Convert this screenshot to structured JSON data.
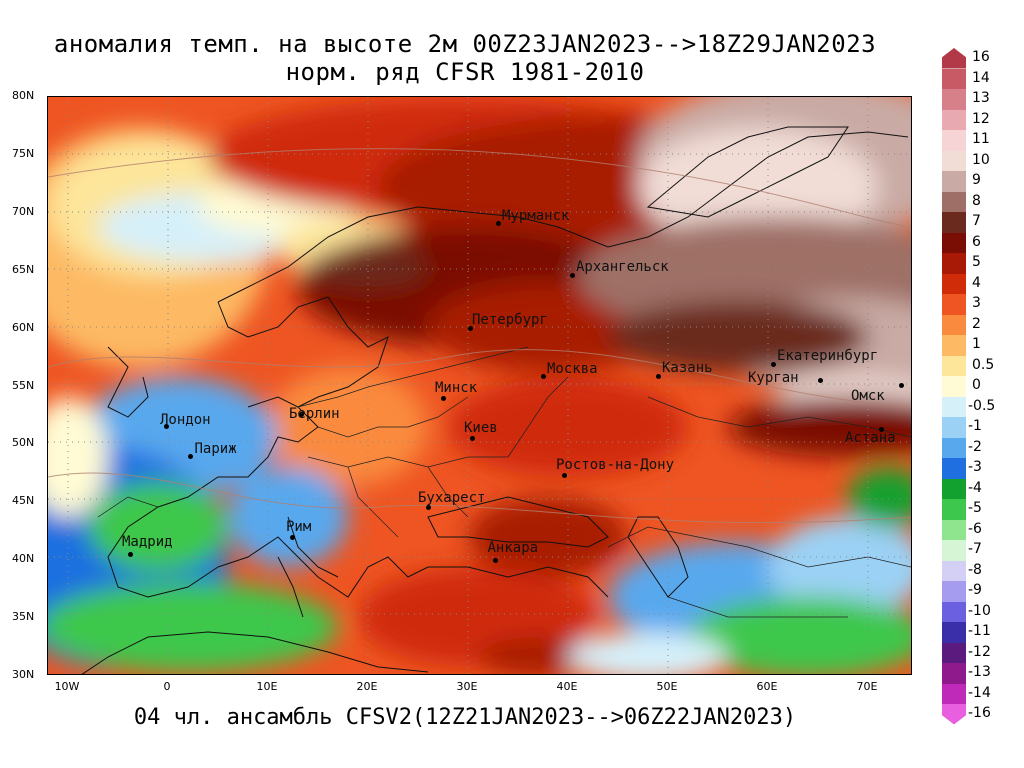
{
  "title_line1": "аномалия темп. на высоте 2м 00Z23JAN2023-->18Z29JAN2023",
  "title_line2": "норм. ряд CFSR 1981-2010",
  "footer": "04 чл. ансамбль CFSV2(12Z21JAN2023-->06Z22JAN2023)",
  "lat_labels": [
    "80N",
    "75N",
    "70N",
    "65N",
    "60N",
    "55N",
    "50N",
    "45N",
    "40N",
    "35N",
    "30N"
  ],
  "lon_labels": [
    "10W",
    "0",
    "10E",
    "20E",
    "30E",
    "40E",
    "50E",
    "60E",
    "70E"
  ],
  "cities": [
    {
      "name": "Мурманск",
      "lon": 33.1,
      "lat": 68.97
    },
    {
      "name": "Архангельск",
      "lon": 40.5,
      "lat": 64.54
    },
    {
      "name": "Петербург",
      "lon": 30.3,
      "lat": 59.94
    },
    {
      "name": "Москва",
      "lon": 37.6,
      "lat": 55.75
    },
    {
      "name": "Казань",
      "lon": 49.1,
      "lat": 55.79
    },
    {
      "name": "Екатеринбург",
      "lon": 60.6,
      "lat": 56.84
    },
    {
      "name": "Курган",
      "lon": 65.3,
      "lat": 55.44
    },
    {
      "name": "Омск",
      "lon": 73.4,
      "lat": 54.99
    },
    {
      "name": "Астана",
      "lon": 71.4,
      "lat": 51.17
    },
    {
      "name": "Минск",
      "lon": 27.6,
      "lat": 53.9
    },
    {
      "name": "Берлин",
      "lon": 13.4,
      "lat": 52.52
    },
    {
      "name": "Лондон",
      "lon": -0.1,
      "lat": 51.5
    },
    {
      "name": "Париж",
      "lon": 2.35,
      "lat": 48.86
    },
    {
      "name": "Киев",
      "lon": 30.5,
      "lat": 50.45
    },
    {
      "name": "Ростов-на-Дону",
      "lon": 39.7,
      "lat": 47.23
    },
    {
      "name": "Бухарест",
      "lon": 26.1,
      "lat": 44.43
    },
    {
      "name": "Рим",
      "lon": 12.5,
      "lat": 41.9
    },
    {
      "name": "Мадрид",
      "lon": -3.7,
      "lat": 40.42
    },
    {
      "name": "Анкара",
      "lon": 32.85,
      "lat": 39.93
    }
  ],
  "legend": [
    {
      "label": "16",
      "color": "#b23a48"
    },
    {
      "label": "14",
      "color": "#c85a65"
    },
    {
      "label": "13",
      "color": "#d8808a"
    },
    {
      "label": "12",
      "color": "#e8aab0"
    },
    {
      "label": "11",
      "color": "#f6d4d6"
    },
    {
      "label": "10",
      "color": "#f1dcd6"
    },
    {
      "label": "9",
      "color": "#c9aaa4"
    },
    {
      "label": "8",
      "color": "#9e6f66"
    },
    {
      "label": "7",
      "color": "#6a2a1e"
    },
    {
      "label": "6",
      "color": "#7a0d04"
    },
    {
      "label": "5",
      "color": "#a81a06"
    },
    {
      "label": "4",
      "color": "#d02c0a"
    },
    {
      "label": "3",
      "color": "#ee5522"
    },
    {
      "label": "2",
      "color": "#fa8a3e"
    },
    {
      "label": "1",
      "color": "#fdb964"
    },
    {
      "label": "0.5",
      "color": "#fde59a"
    },
    {
      "label": "0",
      "color": "#fffbd4"
    },
    {
      "label": "-0.5",
      "color": "#d6f0fa"
    },
    {
      "label": "-1",
      "color": "#9bd1f5"
    },
    {
      "label": "-2",
      "color": "#58a8ee"
    },
    {
      "label": "-3",
      "color": "#1f6fe0"
    },
    {
      "label": "-4",
      "color": "#12a02e"
    },
    {
      "label": "-5",
      "color": "#3dc74c"
    },
    {
      "label": "-6",
      "color": "#8ee58e"
    },
    {
      "label": "-7",
      "color": "#d6f5d4"
    },
    {
      "label": "-8",
      "color": "#d4d0f5"
    },
    {
      "label": "-9",
      "color": "#a59cf0"
    },
    {
      "label": "-10",
      "color": "#6b60e0"
    },
    {
      "label": "-11",
      "color": "#3a2fa8"
    },
    {
      "label": "-12",
      "color": "#5a1a7e"
    },
    {
      "label": "-13",
      "color": "#8e1a8c"
    },
    {
      "label": "-14",
      "color": "#c02ab8"
    },
    {
      "label": "-16",
      "color": "#e860e0"
    }
  ]
}
